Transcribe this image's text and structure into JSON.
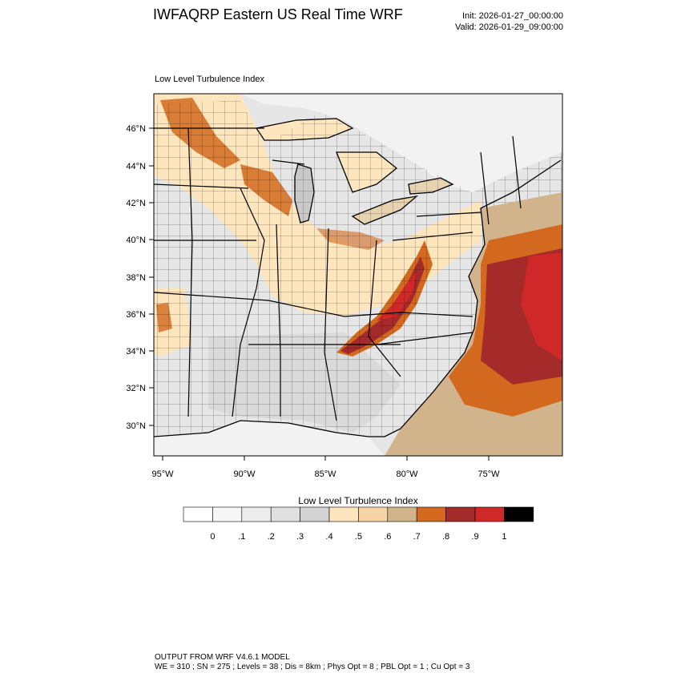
{
  "header": {
    "title": "IWFAQRP Eastern US Real Time WRF",
    "init": "Init: 2026-01-27_00:00:00",
    "valid": "Valid: 2026-01-29_09:00:00"
  },
  "map": {
    "subtitle": "Low Level Turbulence Index",
    "lat_labels": [
      "46°N",
      "44°N",
      "42°N",
      "40°N",
      "38°N",
      "36°N",
      "34°N",
      "32°N",
      "30°N"
    ],
    "lon_labels": [
      "95°W",
      "90°W",
      "85°W",
      "80°W",
      "75°W"
    ],
    "colors": {
      "land_low": "#e4e4e4",
      "land_mid": "#fde6bd",
      "lake": "#c9c9c9",
      "ocean": "#d2b48c",
      "orange": "#d2691e",
      "red": "#a52a2a",
      "bright_red": "#d02828"
    }
  },
  "colorbar": {
    "title": "Low Level Turbulence Index",
    "labels": [
      "0",
      ".1",
      ".2",
      ".3",
      ".4",
      ".5",
      ".6",
      ".7",
      ".8",
      ".9",
      "1"
    ],
    "colors": [
      "#ffffff",
      "#f7f7f7",
      "#ededed",
      "#e0e0e0",
      "#d3d3d3",
      "#fde6bd",
      "#f6d4a6",
      "#d2b48c",
      "#d2691e",
      "#a52a2a",
      "#d02828",
      "#000000"
    ]
  },
  "footer": {
    "line1": "OUTPUT FROM WRF V4.6.1 MODEL",
    "line2": "WE = 310 ; SN = 275 ; Levels = 38 ; Dis = 8km ; Phys Opt = 8 ; PBL Opt = 1 ; Cu Opt = 3"
  }
}
